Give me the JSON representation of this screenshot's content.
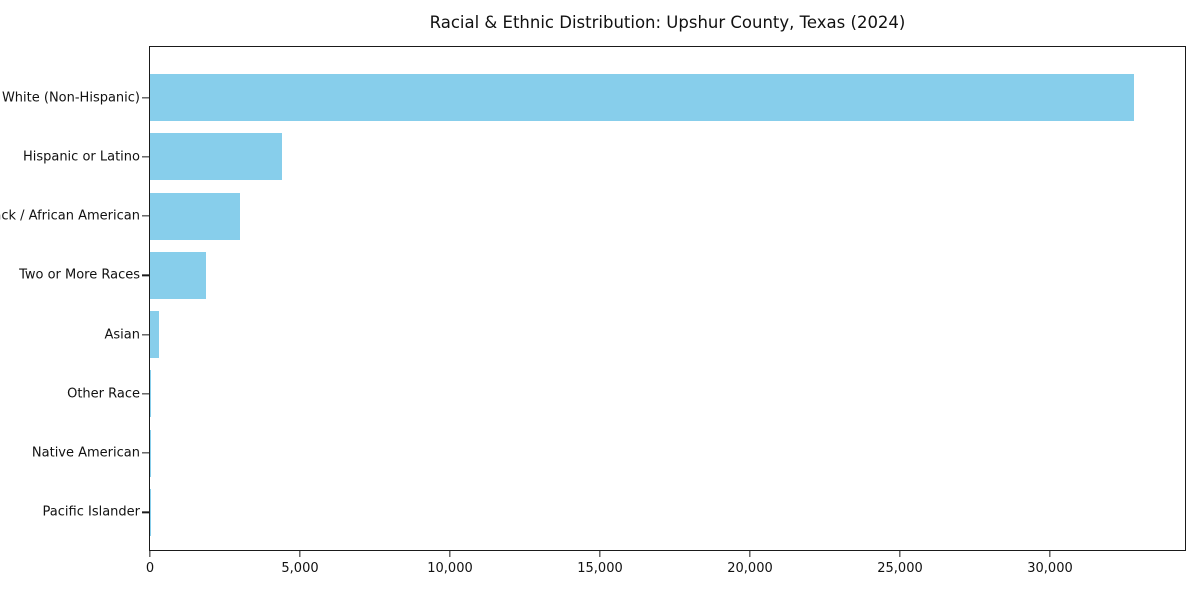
{
  "chart_data": {
    "type": "bar",
    "orientation": "horizontal",
    "title": "Racial & Ethnic Distribution: Upshur County, Texas (2024)",
    "categories": [
      "White (Non-Hispanic)",
      "Hispanic or Latino",
      "Black / African American",
      "Two or More Races",
      "Asian",
      "Other Race",
      "Native American",
      "Pacific Islander"
    ],
    "values": [
      32800,
      4400,
      3000,
      1860,
      300,
      40,
      15,
      5
    ],
    "xlabel": "",
    "ylabel": "",
    "xlim": [
      0,
      34500
    ],
    "x_ticks": [
      {
        "value": 0,
        "label": "0"
      },
      {
        "value": 5000,
        "label": "5,000"
      },
      {
        "value": 10000,
        "label": "10,000"
      },
      {
        "value": 15000,
        "label": "15,000"
      },
      {
        "value": 20000,
        "label": "20,000"
      },
      {
        "value": 25000,
        "label": "25,000"
      },
      {
        "value": 30000,
        "label": "30,000"
      }
    ],
    "bar_color": "#87CEEB",
    "axis_color": "#1a1a1a",
    "grid": false,
    "legend": null
  }
}
